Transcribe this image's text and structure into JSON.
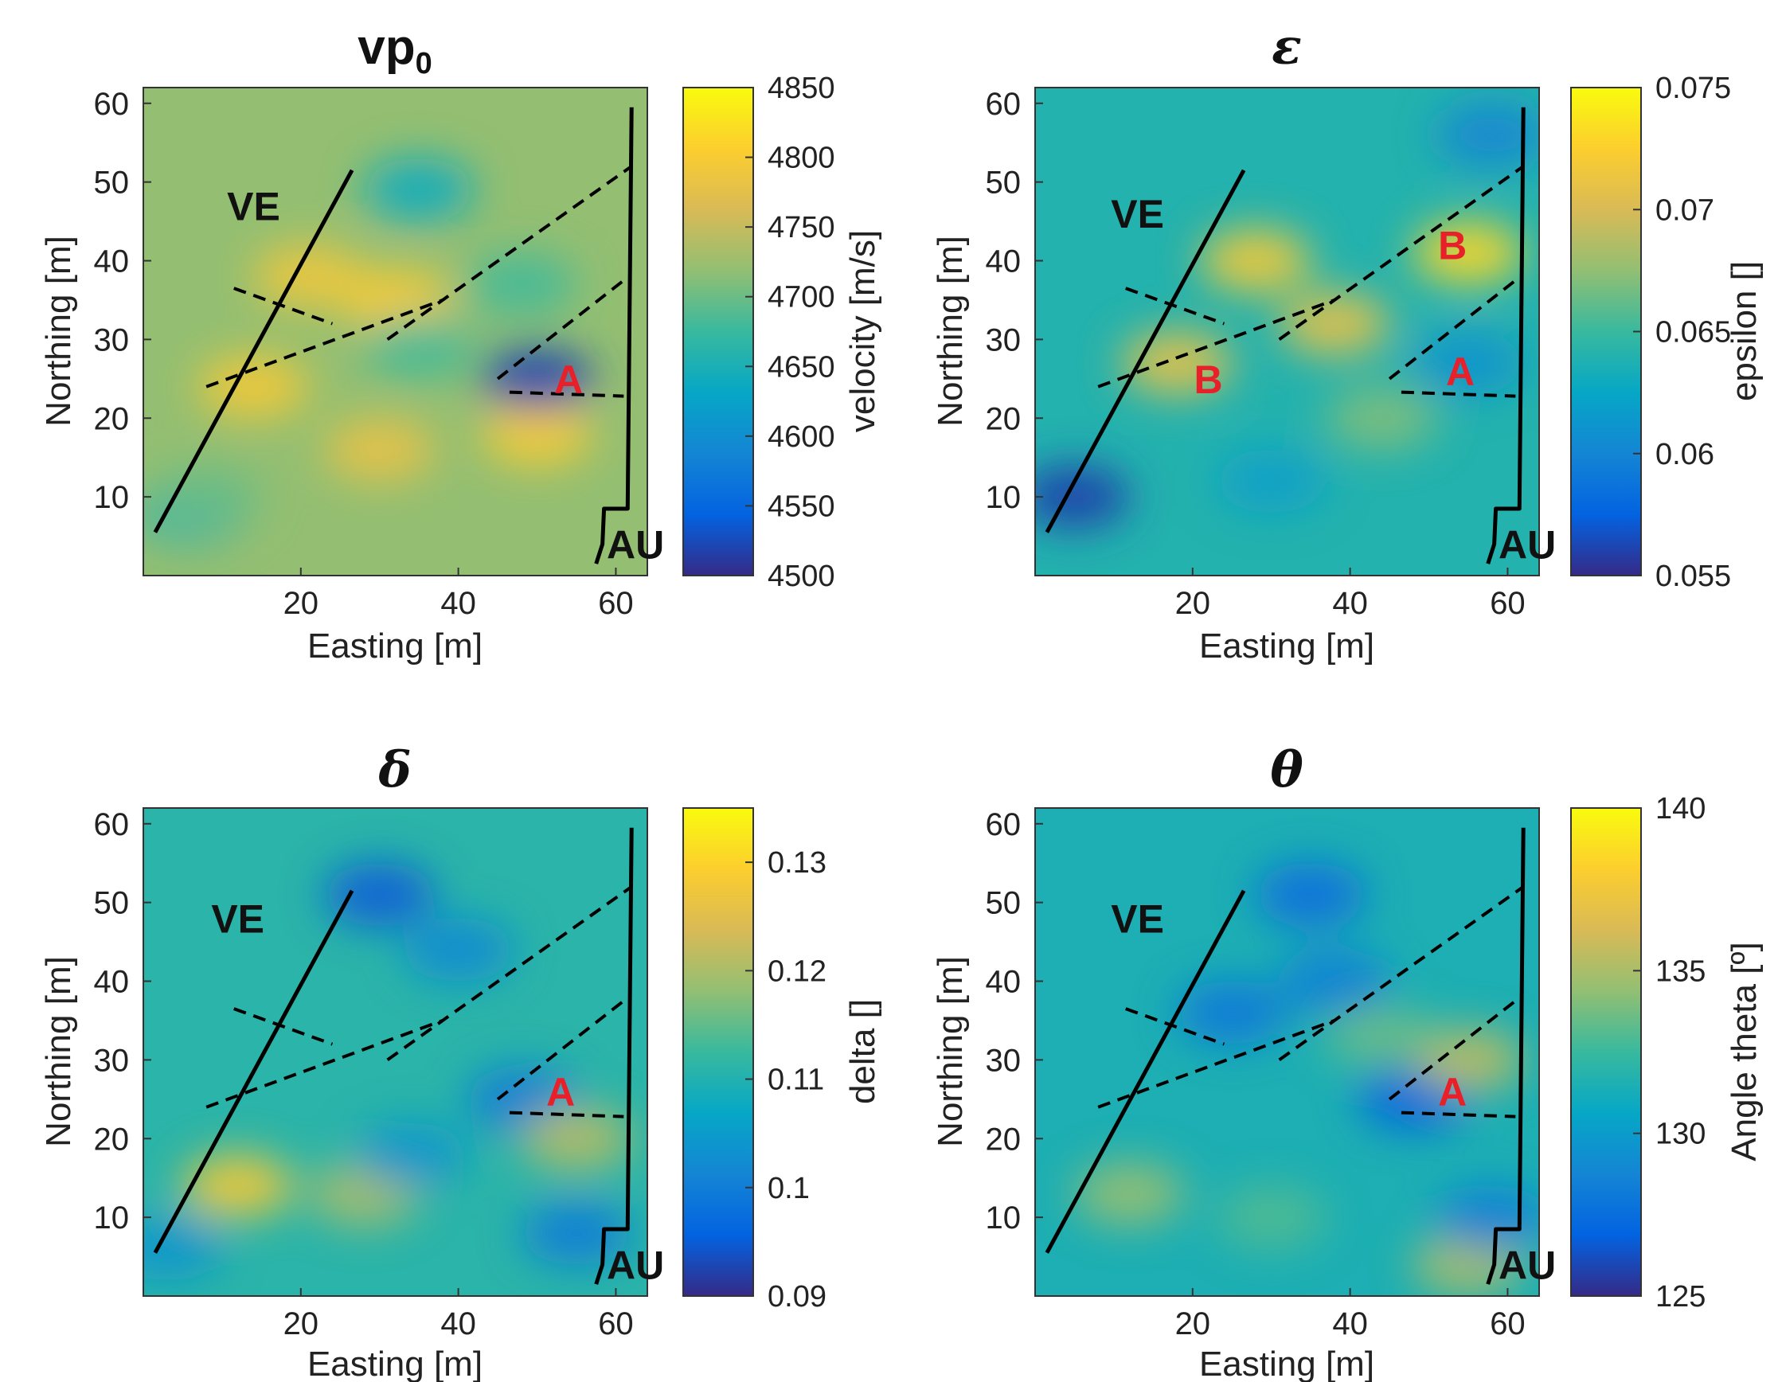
{
  "figure": {
    "colormap_name": "parula",
    "colormap": [
      "#352a87",
      "#0363e1",
      "#1485d4",
      "#06a7c6",
      "#38b99e",
      "#92bf73",
      "#d9ba56",
      "#fcce2e",
      "#f9fb0e"
    ],
    "fault_color": "#000000",
    "label_colors": {
      "VE": "#111111",
      "AU": "#111111",
      "A": "#e8202a",
      "B": "#e8202a"
    }
  },
  "chart_data": [
    {
      "type": "heatmap",
      "title": "vp",
      "title_subscript": "0",
      "title_greek": false,
      "xlabel": "Easting [m]",
      "ylabel": "Northing [m]",
      "xlim": [
        0,
        64
      ],
      "ylim": [
        0,
        62
      ],
      "xticks": [
        20,
        40,
        60
      ],
      "yticks": [
        10,
        20,
        30,
        40,
        50,
        60
      ],
      "colorbar": {
        "label": "velocity [m/s]",
        "range": [
          4500,
          4850
        ],
        "ticks": [
          4500,
          4550,
          4600,
          4650,
          4700,
          4750,
          4800,
          4850
        ],
        "tick_side": "right"
      },
      "background_value": 4720,
      "anomalies": [
        {
          "x": 21,
          "y": 38,
          "value": 4790
        },
        {
          "x": 32,
          "y": 35,
          "value": 4800
        },
        {
          "x": 14,
          "y": 24,
          "value": 4795
        },
        {
          "x": 30,
          "y": 16,
          "value": 4780
        },
        {
          "x": 50,
          "y": 18,
          "value": 4800
        },
        {
          "x": 35,
          "y": 49,
          "value": 4640
        },
        {
          "x": 50,
          "y": 25,
          "value": 4520
        },
        {
          "x": 35,
          "y": 29,
          "value": 4680
        },
        {
          "x": 48,
          "y": 37,
          "value": 4680
        },
        {
          "x": 6,
          "y": 8,
          "value": 4660
        },
        {
          "x": 8,
          "y": 10,
          "value": 4700
        }
      ],
      "labels": [
        {
          "text": "VE",
          "x": 14,
          "y": 47,
          "color": "VE"
        },
        {
          "text": "AU",
          "x": 62.5,
          "y": 4,
          "color": "AU"
        },
        {
          "text": "A",
          "x": 54,
          "y": 25,
          "color": "A"
        }
      ]
    },
    {
      "type": "heatmap",
      "title": "ε",
      "title_subscript": "",
      "title_greek": true,
      "xlabel": "Easting [m]",
      "ylabel": "Northing [m]",
      "xlim": [
        0,
        64
      ],
      "ylim": [
        0,
        62
      ],
      "xticks": [
        20,
        40,
        60
      ],
      "yticks": [
        10,
        20,
        30,
        40,
        50,
        60
      ],
      "colorbar": {
        "label": "epsilon []",
        "range": [
          0.055,
          0.075
        ],
        "ticks": [
          0.055,
          0.06,
          0.065,
          0.07,
          0.075
        ],
        "tick_side": "left"
      },
      "background_value": 0.064,
      "anomalies": [
        {
          "x": 28,
          "y": 40,
          "value": 0.072
        },
        {
          "x": 38,
          "y": 32,
          "value": 0.071
        },
        {
          "x": 55,
          "y": 41,
          "value": 0.073
        },
        {
          "x": 18,
          "y": 27,
          "value": 0.071
        },
        {
          "x": 44,
          "y": 20,
          "value": 0.067
        },
        {
          "x": 55,
          "y": 27,
          "value": 0.061
        },
        {
          "x": 5,
          "y": 10,
          "value": 0.056
        },
        {
          "x": 58,
          "y": 56,
          "value": 0.06
        },
        {
          "x": 30,
          "y": 12,
          "value": 0.062
        }
      ],
      "labels": [
        {
          "text": "VE",
          "x": 13,
          "y": 46,
          "color": "VE"
        },
        {
          "text": "AU",
          "x": 62.5,
          "y": 4,
          "color": "AU"
        },
        {
          "text": "B",
          "x": 53,
          "y": 42,
          "color": "B"
        },
        {
          "text": "B",
          "x": 22,
          "y": 25,
          "color": "B"
        },
        {
          "text": "A",
          "x": 54,
          "y": 26,
          "color": "A"
        }
      ]
    },
    {
      "type": "heatmap",
      "title": "δ",
      "title_subscript": "",
      "title_greek": true,
      "xlabel": "Easting [m]",
      "ylabel": "Northing [m]",
      "xlim": [
        0,
        64
      ],
      "ylim": [
        0,
        62
      ],
      "xticks": [
        20,
        40,
        60
      ],
      "yticks": [
        10,
        20,
        30,
        40,
        50,
        60
      ],
      "colorbar": {
        "label": "delta []",
        "range": [
          0.09,
          0.135
        ],
        "ticks": [
          0.09,
          0.1,
          0.11,
          0.12,
          0.13
        ],
        "tick_side": "right"
      },
      "background_value": 0.111,
      "anomalies": [
        {
          "x": 30,
          "y": 51,
          "value": 0.095
        },
        {
          "x": 40,
          "y": 44,
          "value": 0.102
        },
        {
          "x": 48,
          "y": 25,
          "value": 0.1
        },
        {
          "x": 12,
          "y": 14,
          "value": 0.128
        },
        {
          "x": 28,
          "y": 13,
          "value": 0.12
        },
        {
          "x": 55,
          "y": 20,
          "value": 0.121
        },
        {
          "x": 34,
          "y": 18,
          "value": 0.104
        },
        {
          "x": 55,
          "y": 8,
          "value": 0.1
        },
        {
          "x": 3,
          "y": 6,
          "value": 0.104
        }
      ],
      "labels": [
        {
          "text": "VE",
          "x": 12,
          "y": 48,
          "color": "VE"
        },
        {
          "text": "AU",
          "x": 62.5,
          "y": 4,
          "color": "AU"
        },
        {
          "text": "A",
          "x": 53,
          "y": 26,
          "color": "A"
        }
      ]
    },
    {
      "type": "heatmap",
      "title": "θ",
      "title_subscript": "",
      "title_greek": true,
      "xlabel": "Easting [m]",
      "ylabel": "Northing [m]",
      "xlim": [
        0,
        64
      ],
      "ylim": [
        0,
        62
      ],
      "xticks": [
        20,
        40,
        60
      ],
      "yticks": [
        10,
        20,
        30,
        40,
        50,
        60
      ],
      "colorbar": {
        "label": "Angle theta [º]",
        "range": [
          125,
          140
        ],
        "ticks": [
          125,
          130,
          135,
          140
        ],
        "tick_side": "left"
      },
      "background_value": 131.5,
      "anomalies": [
        {
          "x": 25,
          "y": 36,
          "value": 128
        },
        {
          "x": 38,
          "y": 40,
          "value": 128.5
        },
        {
          "x": 48,
          "y": 25,
          "value": 127
        },
        {
          "x": 35,
          "y": 51,
          "value": 127.5
        },
        {
          "x": 55,
          "y": 30,
          "value": 135.5
        },
        {
          "x": 12,
          "y": 13,
          "value": 134.5
        },
        {
          "x": 55,
          "y": 4,
          "value": 135
        },
        {
          "x": 30,
          "y": 10,
          "value": 133
        },
        {
          "x": 58,
          "y": 10,
          "value": 128.5
        },
        {
          "x": 44,
          "y": 33,
          "value": 133.5
        }
      ],
      "labels": [
        {
          "text": "VE",
          "x": 13,
          "y": 48,
          "color": "VE"
        },
        {
          "text": "AU",
          "x": 62.5,
          "y": 4,
          "color": "AU"
        },
        {
          "text": "A",
          "x": 53,
          "y": 26,
          "color": "A"
        }
      ]
    }
  ],
  "faults": {
    "solid_lines": [
      [
        [
          1.5,
          5.5
        ],
        [
          26.5,
          51.5
        ]
      ],
      [
        [
          62,
          59.5
        ],
        [
          61.5,
          8.5
        ],
        [
          58.5,
          8.5
        ],
        [
          58.3,
          4
        ],
        [
          57.5,
          1.5
        ]
      ]
    ],
    "dashed_lines": [
      [
        [
          8,
          24
        ],
        [
          38,
          35
        ]
      ],
      [
        [
          31,
          30
        ],
        [
          38,
          35
        ],
        [
          62,
          52
        ]
      ],
      [
        [
          11.5,
          36.5
        ],
        [
          24,
          32
        ]
      ],
      [
        [
          45,
          25
        ],
        [
          61,
          37.5
        ]
      ],
      [
        [
          46.5,
          23.3
        ],
        [
          61,
          22.8
        ]
      ]
    ]
  }
}
